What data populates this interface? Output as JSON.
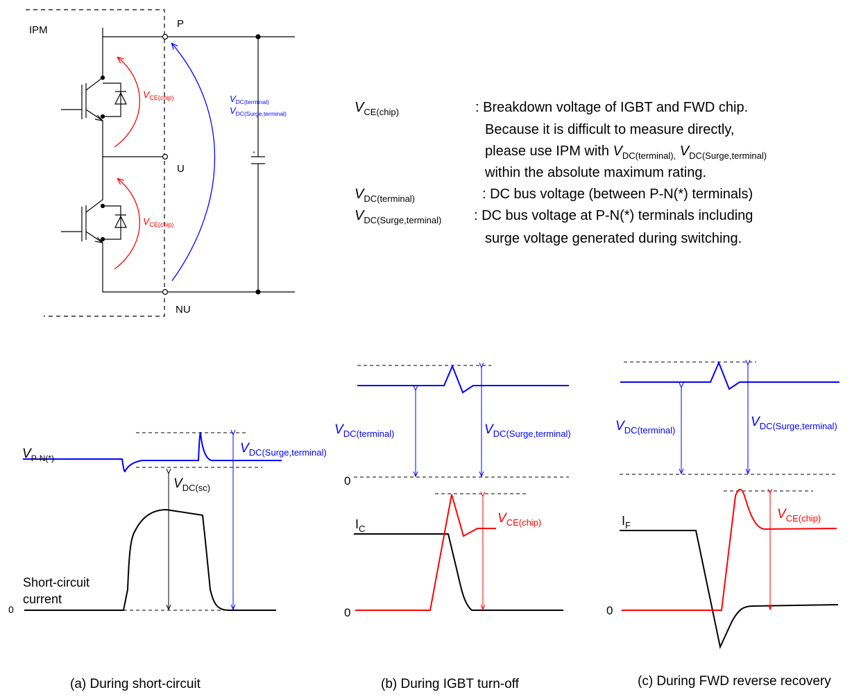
{
  "colors": {
    "blue": "#0000ff",
    "red": "#ff0000",
    "black": "#000000"
  },
  "circuit": {
    "ipm_label": "IPM",
    "node_p": "P",
    "node_u": "U",
    "node_nu": "NU",
    "vce_upper": {
      "main": "V",
      "sub": "CE(chip)"
    },
    "vce_lower": {
      "main": "V",
      "sub": "CE(chip)"
    },
    "vdc_term": {
      "main": "V",
      "sub": "DC(terminal)"
    },
    "vdc_surge": {
      "main": "V",
      "sub": "DC(Surge,terminal)"
    }
  },
  "legend": {
    "vce": {
      "main": "V",
      "sub": "CE(chip)"
    },
    "vce_desc1": ": Breakdown voltage of IGBT and FWD chip.",
    "vce_desc2": "Because it is difficult to measure directly,",
    "vce_desc3_pre": "please use IPM with ",
    "vce_desc3_v1": {
      "main": "V",
      "sub": "DC(terminal),"
    },
    "vce_desc3_v2": {
      "main": "V",
      "sub": "DC(Surge,terminal)"
    },
    "vce_desc4": "within the absolute maximum rating.",
    "vdc": {
      "main": "V",
      "sub": "DC(terminal)"
    },
    "vdc_desc": ": DC bus voltage (between P-N(*) terminals)",
    "vsurge": {
      "main": "V",
      "sub": "DC(Surge,terminal)"
    },
    "vsurge_desc1": ": DC bus voltage at P-N(*) terminals including",
    "vsurge_desc2": "surge voltage generated during switching."
  },
  "panel_a": {
    "vpn": {
      "main": "V",
      "sub": "P-N(*)"
    },
    "vdc_sc": {
      "main": "V",
      "sub": "DC(sc)"
    },
    "vsurge": {
      "main": "V",
      "sub": "DC(Surge,terminal)"
    },
    "sc_label1": "Short-circuit",
    "sc_label2": "current",
    "zero": "0",
    "caption": "(a) During short-circuit"
  },
  "panel_b": {
    "vdc": {
      "main": "V",
      "sub": "DC(terminal)"
    },
    "vsurge": {
      "main": "V",
      "sub": "DC(Surge,terminal)"
    },
    "vce": {
      "main": "V",
      "sub": "CE(chip)"
    },
    "ic": {
      "main": "I",
      "sub": "C"
    },
    "zero_top": "0",
    "zero_bottom": "0",
    "caption": "(b) During IGBT turn-off"
  },
  "panel_c": {
    "vdc": {
      "main": "V",
      "sub": "DC(terminal)"
    },
    "vsurge": {
      "main": "V",
      "sub": "DC(Surge,terminal)"
    },
    "vce": {
      "main": "V",
      "sub": "CE(chip)"
    },
    "if": {
      "main": "I",
      "sub": "F"
    },
    "zero_bottom": "0",
    "caption": "(c) During FWD reverse recovery"
  }
}
